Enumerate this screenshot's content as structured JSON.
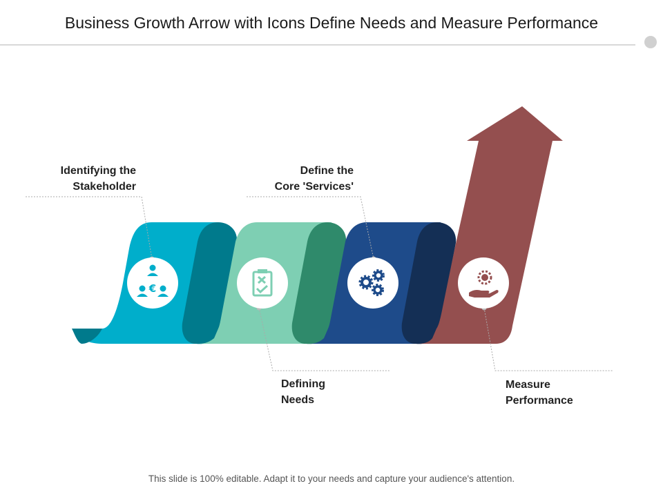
{
  "title": "Business Growth Arrow with Icons Define Needs and Measure Performance",
  "steps": [
    {
      "line1": "Identifying the",
      "line2": "Stakeholder",
      "icon": "stakeholder-euro-icon"
    },
    {
      "line1": "Defining",
      "line2": "Needs",
      "icon": "clipboard-check-icon"
    },
    {
      "line1": "Define the",
      "line2": "Core 'Services'",
      "icon": "gears-icon"
    },
    {
      "line1": "Measure",
      "line2": "Performance",
      "icon": "hand-gear-icon"
    }
  ],
  "footer": "This slide is 100% editable. Adapt it to your needs and capture your audience's attention.",
  "colors": {
    "teal": "#00AECB",
    "teal_dark": "#007A8C",
    "mint": "#7ECFB3",
    "mint_dark": "#2F8A6B",
    "navy": "#1E4B8A",
    "navy_dark": "#142F55",
    "maroon": "#944F4F"
  }
}
